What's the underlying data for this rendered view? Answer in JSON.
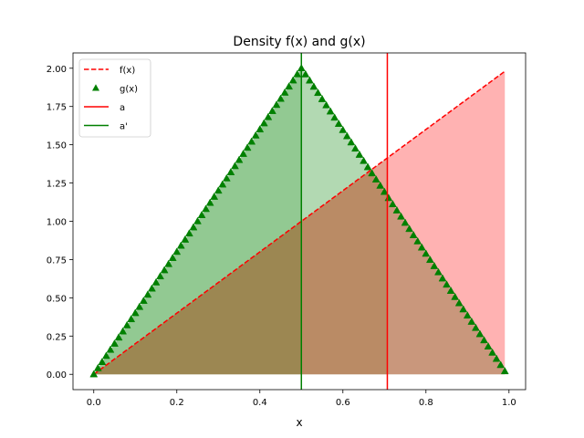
{
  "chart_data": {
    "type": "line",
    "title": "Density f(x) and g(x)",
    "xlabel": "x",
    "ylabel": "",
    "xlim": [
      -0.05,
      1.04
    ],
    "ylim": [
      -0.1,
      2.1
    ],
    "xticks": [
      "0.0",
      "0.2",
      "0.4",
      "0.6",
      "0.8",
      "1.0"
    ],
    "yticks": [
      "0.00",
      "0.25",
      "0.50",
      "0.75",
      "1.00",
      "1.25",
      "1.50",
      "1.75",
      "2.00"
    ],
    "grid": false,
    "legend_position": "upper-left",
    "series": [
      {
        "name": "f(x)",
        "kind": "dashed-line",
        "color": "#ff0000",
        "fill_color": "#ff0000",
        "x": [
          0.0,
          0.99
        ],
        "y": [
          0.0,
          1.98
        ]
      },
      {
        "name": "g(x)",
        "kind": "triangle-markers",
        "color": "#008000",
        "fill_color": "#008000",
        "x": [
          0.0,
          0.5,
          0.99
        ],
        "y": [
          0.0,
          2.0,
          0.02
        ],
        "marker_step": 0.01
      }
    ],
    "vlines": [
      {
        "name": "a",
        "x": 0.707,
        "color": "#ff0000"
      },
      {
        "name": "a'",
        "x": 0.5,
        "color": "#008000"
      }
    ]
  }
}
